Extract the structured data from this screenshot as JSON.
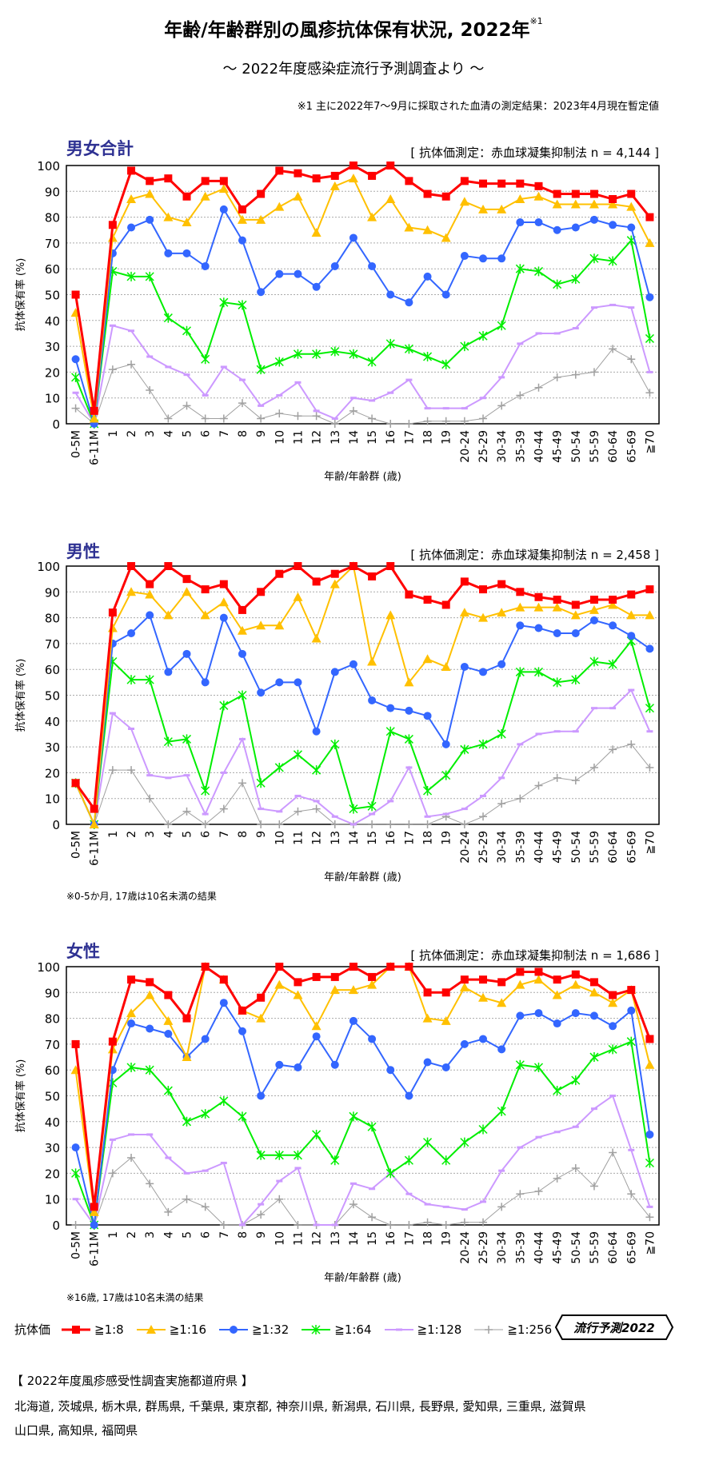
{
  "header": {
    "title": "年齢/年齢群別の風疹抗体保有状況, 2022年",
    "title_note_mark": "※1",
    "subtitle": "～ 2022年度感染症流行予測調査より ～",
    "note": "※1  主に2022年7～9月に採取された血清の測定結果：2023年4月現在暫定値"
  },
  "legend": {
    "label": "抗体価",
    "badge": "流行予測2022"
  },
  "prefectures": {
    "title": "【 2022年度風疹感受性調査実施都道府県 】",
    "line1": "北海道,  茨城県,  栃木県,  群馬県,  千葉県,  東京都,  神奈川県,  新潟県,  石川県,  長野県,  愛知県,  三重県,  滋賀県",
    "line2": "山口県,  高知県,  福岡県"
  },
  "chart_data": [
    {
      "type": "line",
      "title": "男女合計",
      "method": "[ 抗体価測定：赤血球凝集抑制法 n = 4,144 ]",
      "xlabel": "年齢/年齢群 (歳)",
      "ylabel": "抗体保有率 (%)",
      "ylim": [
        0,
        100
      ],
      "yticks": [
        0,
        10,
        20,
        30,
        40,
        50,
        60,
        70,
        80,
        90,
        100
      ],
      "grid": true,
      "footnote": "",
      "categories": [
        "0-5M",
        "6-11M",
        "1",
        "2",
        "3",
        "4",
        "5",
        "6",
        "7",
        "8",
        "9",
        "10",
        "11",
        "12",
        "13",
        "14",
        "15",
        "16",
        "17",
        "18",
        "19",
        "20-24",
        "25-29",
        "30-34",
        "35-39",
        "40-44",
        "45-49",
        "50-54",
        "55-59",
        "60-64",
        "65-69",
        "≧70"
      ],
      "series": [
        {
          "name": "≧1:8",
          "color": "#ff0000",
          "marker": "square",
          "values": [
            50,
            5,
            77,
            98,
            94,
            95,
            88,
            94,
            94,
            83,
            89,
            98,
            97,
            95,
            96,
            100,
            96,
            100,
            94,
            89,
            88,
            94,
            93,
            93,
            93,
            92,
            89,
            89,
            89,
            87,
            89,
            80
          ]
        },
        {
          "name": "≧1:16",
          "color": "#ffc000",
          "marker": "triangle",
          "values": [
            43,
            2,
            72,
            87,
            89,
            80,
            78,
            88,
            91,
            79,
            79,
            84,
            88,
            74,
            92,
            95,
            80,
            87,
            76,
            75,
            72,
            86,
            83,
            83,
            87,
            88,
            85,
            85,
            85,
            85,
            84,
            70
          ]
        },
        {
          "name": "≧1:32",
          "color": "#3366ff",
          "marker": "circle",
          "values": [
            25,
            0,
            66,
            76,
            79,
            66,
            66,
            61,
            83,
            71,
            51,
            58,
            58,
            53,
            61,
            72,
            61,
            50,
            47,
            57,
            50,
            65,
            64,
            64,
            78,
            78,
            75,
            76,
            79,
            77,
            76,
            49
          ]
        },
        {
          "name": "≧1:64",
          "color": "#00ee00",
          "marker": "asterisk",
          "values": [
            18,
            0,
            59,
            57,
            57,
            41,
            36,
            25,
            47,
            46,
            21,
            24,
            27,
            27,
            28,
            27,
            24,
            31,
            29,
            26,
            23,
            30,
            34,
            38,
            60,
            59,
            54,
            56,
            64,
            63,
            71,
            33
          ]
        },
        {
          "name": "≧1:128",
          "color": "#cc99ff",
          "marker": "dash",
          "values": [
            12,
            0,
            38,
            36,
            26,
            22,
            19,
            11,
            22,
            17,
            7,
            11,
            16,
            5,
            2,
            10,
            9,
            12,
            17,
            6,
            6,
            6,
            10,
            18,
            31,
            35,
            35,
            37,
            45,
            46,
            45,
            20
          ]
        },
        {
          "name": "≧1:256",
          "color": "#a0a0a0",
          "marker": "plus",
          "values": [
            6,
            0,
            21,
            23,
            13,
            2,
            7,
            2,
            2,
            8,
            2,
            4,
            3,
            3,
            0,
            5,
            2,
            0,
            0,
            1,
            1,
            1,
            2,
            7,
            11,
            14,
            18,
            19,
            20,
            29,
            25,
            12
          ]
        }
      ]
    },
    {
      "type": "line",
      "title": "男性",
      "method": "[ 抗体価測定：赤血球凝集抑制法 n = 2,458 ]",
      "xlabel": "年齢/年齢群 (歳)",
      "ylabel": "抗体保有率 (%)",
      "ylim": [
        0,
        100
      ],
      "yticks": [
        0,
        10,
        20,
        30,
        40,
        50,
        60,
        70,
        80,
        90,
        100
      ],
      "grid": true,
      "footnote": "※0-5か月, 17歳は10名未満の結果",
      "categories": [
        "0-5M",
        "6-11M",
        "1",
        "2",
        "3",
        "4",
        "5",
        "6",
        "7",
        "8",
        "9",
        "10",
        "11",
        "12",
        "13",
        "14",
        "15",
        "16",
        "17",
        "18",
        "19",
        "20-24",
        "25-29",
        "30-34",
        "35-39",
        "40-44",
        "45-49",
        "50-54",
        "55-59",
        "60-64",
        "65-69",
        "≧70"
      ],
      "series": [
        {
          "name": "≧1:8",
          "color": "#ff0000",
          "marker": "square",
          "values": [
            16,
            6,
            82,
            100,
            93,
            100,
            95,
            91,
            93,
            83,
            90,
            97,
            100,
            94,
            97,
            100,
            96,
            100,
            89,
            87,
            85,
            94,
            91,
            93,
            90,
            88,
            87,
            85,
            87,
            87,
            89,
            91
          ]
        },
        {
          "name": "≧1:16",
          "color": "#ffc000",
          "marker": "triangle",
          "values": [
            16,
            0,
            76,
            90,
            89,
            81,
            90,
            81,
            86,
            75,
            77,
            77,
            88,
            72,
            93,
            100,
            63,
            81,
            55,
            64,
            61,
            82,
            80,
            82,
            84,
            84,
            84,
            81,
            83,
            85,
            81,
            81
          ]
        },
        {
          "name": "≧1:32",
          "color": "#3366ff",
          "marker": "circle",
          "values": [
            16,
            0,
            70,
            74,
            81,
            59,
            66,
            55,
            80,
            66,
            51,
            55,
            55,
            36,
            59,
            62,
            48,
            45,
            44,
            42,
            31,
            61,
            59,
            62,
            77,
            76,
            74,
            74,
            79,
            77,
            73,
            68
          ]
        },
        {
          "name": "≧1:64",
          "color": "#00ee00",
          "marker": "asterisk",
          "values": [
            16,
            0,
            63,
            56,
            56,
            32,
            33,
            13,
            46,
            50,
            16,
            22,
            27,
            21,
            31,
            6,
            7,
            36,
            33,
            13,
            19,
            29,
            31,
            35,
            59,
            59,
            55,
            56,
            63,
            62,
            71,
            45
          ]
        },
        {
          "name": "≧1:128",
          "color": "#cc99ff",
          "marker": "dash",
          "values": [
            16,
            0,
            43,
            37,
            19,
            18,
            19,
            4,
            20,
            33,
            6,
            5,
            11,
            9,
            3,
            0,
            4,
            9,
            22,
            3,
            4,
            6,
            11,
            18,
            31,
            35,
            36,
            36,
            45,
            45,
            52,
            36
          ]
        },
        {
          "name": "≧1:256",
          "color": "#a0a0a0",
          "marker": "plus",
          "values": [
            16,
            0,
            21,
            21,
            10,
            0,
            5,
            0,
            6,
            16,
            0,
            0,
            5,
            6,
            0,
            0,
            0,
            0,
            0,
            0,
            3,
            0,
            3,
            8,
            10,
            15,
            18,
            17,
            22,
            29,
            31,
            22
          ]
        }
      ]
    },
    {
      "type": "line",
      "title": "女性",
      "method": "[ 抗体価測定：赤血球凝集抑制法 n = 1,686 ]",
      "xlabel": "年齢/年齢群 (歳)",
      "ylabel": "抗体保有率 (%)",
      "ylim": [
        0,
        100
      ],
      "yticks": [
        0,
        10,
        20,
        30,
        40,
        50,
        60,
        70,
        80,
        90,
        100
      ],
      "grid": true,
      "footnote": "※16歳, 17歳は10名未満の結果",
      "categories": [
        "0-5M",
        "6-11M",
        "1",
        "2",
        "3",
        "4",
        "5",
        "6",
        "7",
        "8",
        "9",
        "10",
        "11",
        "12",
        "13",
        "14",
        "15",
        "16",
        "17",
        "18",
        "19",
        "20-24",
        "25-29",
        "30-34",
        "35-39",
        "40-44",
        "45-49",
        "50-54",
        "55-59",
        "60-64",
        "65-69",
        "≧70"
      ],
      "series": [
        {
          "name": "≧1:8",
          "color": "#ff0000",
          "marker": "square",
          "values": [
            70,
            7,
            71,
            95,
            94,
            89,
            80,
            100,
            95,
            83,
            88,
            100,
            94,
            96,
            96,
            100,
            96,
            100,
            100,
            90,
            90,
            95,
            95,
            94,
            98,
            98,
            95,
            97,
            94,
            89,
            91,
            72
          ]
        },
        {
          "name": "≧1:16",
          "color": "#ffc000",
          "marker": "triangle",
          "values": [
            60,
            5,
            68,
            82,
            89,
            79,
            65,
            100,
            95,
            83,
            80,
            93,
            89,
            77,
            91,
            91,
            93,
            100,
            100,
            80,
            79,
            92,
            88,
            86,
            93,
            95,
            89,
            93,
            90,
            86,
            91,
            62
          ]
        },
        {
          "name": "≧1:32",
          "color": "#3366ff",
          "marker": "circle",
          "values": [
            30,
            0,
            60,
            78,
            76,
            74,
            65,
            72,
            86,
            75,
            50,
            62,
            61,
            73,
            62,
            79,
            72,
            60,
            50,
            63,
            61,
            70,
            72,
            68,
            81,
            82,
            78,
            82,
            81,
            77,
            83,
            35
          ]
        },
        {
          "name": "≧1:64",
          "color": "#00ee00",
          "marker": "asterisk",
          "values": [
            20,
            0,
            55,
            61,
            60,
            52,
            40,
            43,
            48,
            42,
            27,
            27,
            27,
            35,
            25,
            42,
            38,
            20,
            25,
            32,
            25,
            32,
            37,
            44,
            62,
            61,
            52,
            56,
            65,
            68,
            71,
            24
          ]
        },
        {
          "name": "≧1:128",
          "color": "#cc99ff",
          "marker": "dash",
          "values": [
            10,
            0,
            33,
            35,
            35,
            26,
            20,
            21,
            24,
            0,
            8,
            17,
            22,
            0,
            0,
            16,
            14,
            20,
            12,
            8,
            7,
            6,
            9,
            21,
            30,
            34,
            36,
            38,
            45,
            50,
            29,
            7
          ]
        },
        {
          "name": "≧1:256",
          "color": "#a0a0a0",
          "marker": "plus",
          "values": [
            0,
            0,
            20,
            26,
            16,
            5,
            10,
            7,
            0,
            0,
            4,
            10,
            0,
            0,
            0,
            8,
            3,
            0,
            0,
            1,
            0,
            1,
            1,
            7,
            12,
            13,
            18,
            22,
            15,
            28,
            12,
            3
          ]
        }
      ]
    }
  ]
}
